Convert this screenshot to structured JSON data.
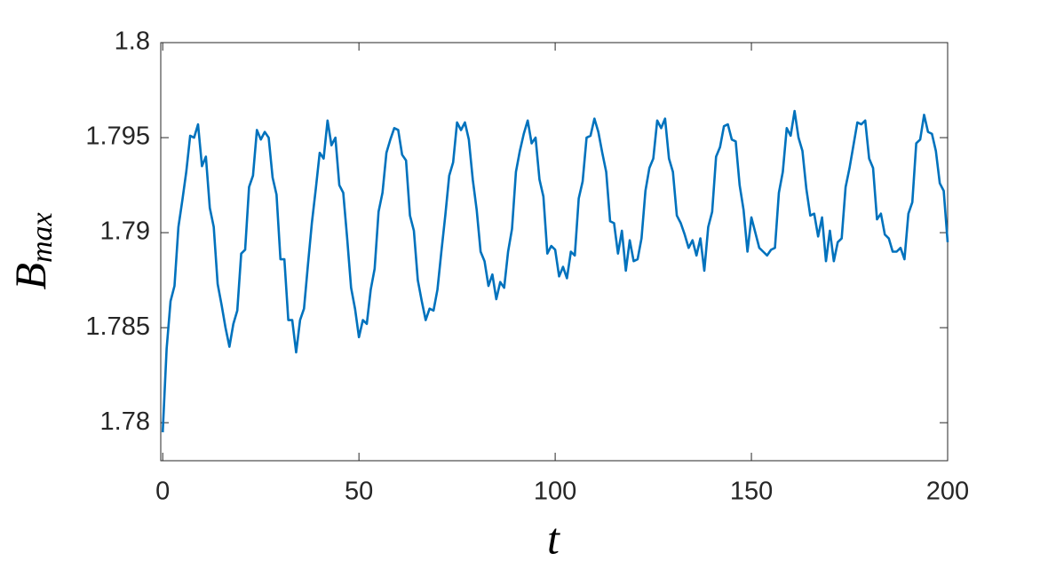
{
  "chart_data": {
    "type": "line",
    "xlabel": "t",
    "ylabel": {
      "base": "B",
      "sub": "max"
    },
    "xlim": [
      -0.5,
      200
    ],
    "ylim": [
      1.778,
      1.8
    ],
    "xticks": [
      0,
      50,
      100,
      150,
      200
    ],
    "yticks": [
      1.78,
      1.785,
      1.79,
      1.795,
      1.8
    ],
    "x": [
      0,
      1,
      2,
      3,
      4,
      5,
      6,
      7,
      8,
      9,
      10,
      11,
      12,
      13,
      14,
      15,
      16,
      17,
      18,
      19,
      20,
      21,
      22,
      23,
      24,
      25,
      26,
      27,
      28,
      29,
      30,
      31,
      32,
      33,
      34,
      35,
      36,
      37,
      38,
      39,
      40,
      41,
      42,
      43,
      44,
      45,
      46,
      47,
      48,
      49,
      50,
      51,
      52,
      53,
      54,
      55,
      56,
      57,
      58,
      59,
      60,
      61,
      62,
      63,
      64,
      65,
      66,
      67,
      68,
      69,
      70,
      71,
      72,
      73,
      74,
      75,
      76,
      77,
      78,
      79,
      80,
      81,
      82,
      83,
      84,
      85,
      86,
      87,
      88,
      89,
      90,
      91,
      92,
      93,
      94,
      95,
      96,
      97,
      98,
      99,
      100,
      101,
      102,
      103,
      104,
      105,
      106,
      107,
      108,
      109,
      110,
      111,
      112,
      113,
      114,
      115,
      116,
      117,
      118,
      119,
      120,
      121,
      122,
      123,
      124,
      125,
      126,
      127,
      128,
      129,
      130,
      131,
      132,
      133,
      134,
      135,
      136,
      137,
      138,
      139,
      140,
      141,
      142,
      143,
      144,
      145,
      146,
      147,
      148,
      149,
      150,
      151,
      152,
      153,
      154,
      155,
      156,
      157,
      158,
      159,
      160,
      161,
      162,
      163,
      164,
      165,
      166,
      167,
      168,
      169,
      170,
      171,
      172,
      173,
      174,
      175,
      176,
      177,
      178,
      179,
      180,
      181,
      182,
      183,
      184,
      185,
      186,
      187,
      188,
      189,
      190,
      191,
      192,
      193,
      194,
      195,
      196,
      197,
      198,
      199,
      200
    ],
    "series": [
      {
        "color": "#0072bd",
        "values": [
          1.7795,
          1.7839,
          1.7864,
          1.7872,
          1.7903,
          1.7917,
          1.7932,
          1.7951,
          1.795,
          1.7957,
          1.7935,
          1.794,
          1.7913,
          1.7903,
          1.7873,
          1.7862,
          1.785,
          1.784,
          1.7852,
          1.7859,
          1.7889,
          1.7891,
          1.7924,
          1.793,
          1.7954,
          1.7949,
          1.7953,
          1.795,
          1.7929,
          1.792,
          1.7886,
          1.7886,
          1.7854,
          1.7854,
          1.7837,
          1.7854,
          1.786,
          1.7883,
          1.7905,
          1.7923,
          1.7942,
          1.7939,
          1.7959,
          1.7946,
          1.795,
          1.7925,
          1.7921,
          1.7897,
          1.7871,
          1.786,
          1.7845,
          1.7854,
          1.7852,
          1.787,
          1.7881,
          1.7911,
          1.7921,
          1.7942,
          1.7949,
          1.7955,
          1.7954,
          1.7941,
          1.7938,
          1.7909,
          1.7901,
          1.7875,
          1.7864,
          1.7854,
          1.786,
          1.7859,
          1.787,
          1.789,
          1.7909,
          1.793,
          1.7937,
          1.7958,
          1.7954,
          1.7958,
          1.7949,
          1.7928,
          1.7912,
          1.789,
          1.7885,
          1.7872,
          1.7878,
          1.7865,
          1.7874,
          1.7871,
          1.789,
          1.7902,
          1.7932,
          1.7943,
          1.7952,
          1.7959,
          1.7947,
          1.795,
          1.7928,
          1.7919,
          1.7889,
          1.7893,
          1.7891,
          1.7877,
          1.7882,
          1.7876,
          1.789,
          1.7888,
          1.7918,
          1.7927,
          1.795,
          1.7951,
          1.796,
          1.7953,
          1.7942,
          1.7932,
          1.7906,
          1.7905,
          1.7889,
          1.7901,
          1.788,
          1.7896,
          1.7885,
          1.7886,
          1.7897,
          1.7922,
          1.7934,
          1.7939,
          1.7959,
          1.7955,
          1.796,
          1.7939,
          1.7932,
          1.7909,
          1.7905,
          1.7899,
          1.7892,
          1.7896,
          1.7888,
          1.7897,
          1.788,
          1.7903,
          1.7911,
          1.794,
          1.7945,
          1.7956,
          1.7957,
          1.7949,
          1.7948,
          1.7925,
          1.7912,
          1.789,
          1.7908,
          1.79,
          1.7892,
          1.789,
          1.7888,
          1.7891,
          1.7892,
          1.7921,
          1.7932,
          1.7955,
          1.7951,
          1.7964,
          1.795,
          1.7943,
          1.7923,
          1.7909,
          1.791,
          1.7898,
          1.7908,
          1.7885,
          1.7901,
          1.7885,
          1.7895,
          1.7897,
          1.7924,
          1.7934,
          1.7946,
          1.7958,
          1.7957,
          1.7959,
          1.7939,
          1.7934,
          1.7907,
          1.791,
          1.7899,
          1.7897,
          1.789,
          1.789,
          1.7892,
          1.7886,
          1.791,
          1.7916,
          1.7947,
          1.7949,
          1.7962,
          1.7953,
          1.7952,
          1.7943,
          1.7926,
          1.7922,
          1.7895
        ]
      }
    ]
  }
}
